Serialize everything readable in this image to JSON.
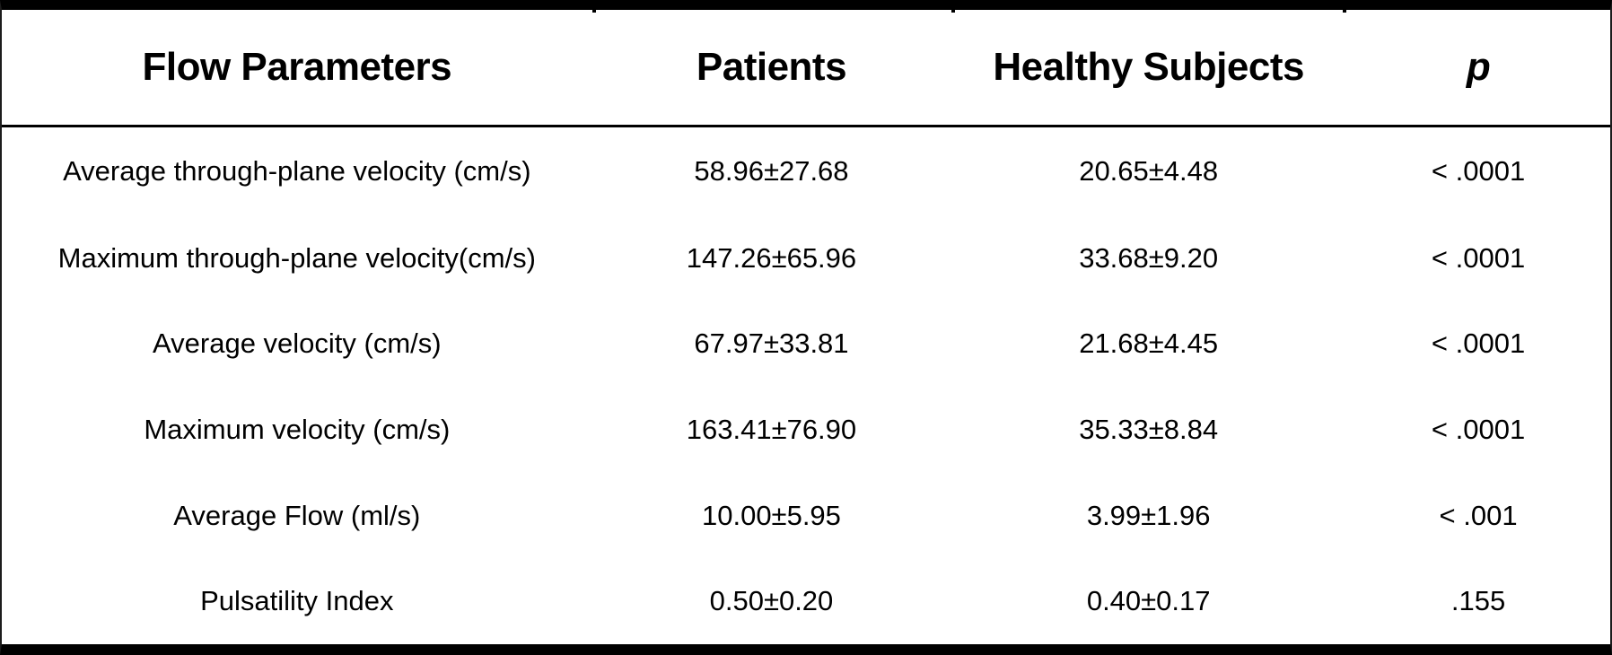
{
  "colors": {
    "text": "#000000",
    "background": "#ffffff",
    "rule": "#000000"
  },
  "table": {
    "columns": [
      "Flow Parameters",
      "Patients",
      "Healthy Subjects",
      "p"
    ],
    "rows": [
      {
        "parameter": "Average through-plane velocity (cm/s)",
        "patients": "58.96±27.68",
        "healthy_subjects": "20.65±4.48",
        "p": "< .0001"
      },
      {
        "parameter": "Maximum through-plane velocity(cm/s)",
        "patients": "147.26±65.96",
        "healthy_subjects": "33.68±9.20",
        "p": "< .0001"
      },
      {
        "parameter": "Average velocity (cm/s)",
        "patients": "67.97±33.81",
        "healthy_subjects": "21.68±4.45",
        "p": "< .0001"
      },
      {
        "parameter": "Maximum velocity (cm/s)",
        "patients": "163.41±76.90",
        "healthy_subjects": "35.33±8.84",
        "p": "< .0001"
      },
      {
        "parameter": "Average Flow (ml/s)",
        "patients": "10.00±5.95",
        "healthy_subjects": "3.99±1.96",
        "p": "< .001"
      },
      {
        "parameter": "Pulsatility Index",
        "patients": "0.50±0.20",
        "healthy_subjects": "0.40±0.17",
        "p": ".155"
      }
    ]
  }
}
